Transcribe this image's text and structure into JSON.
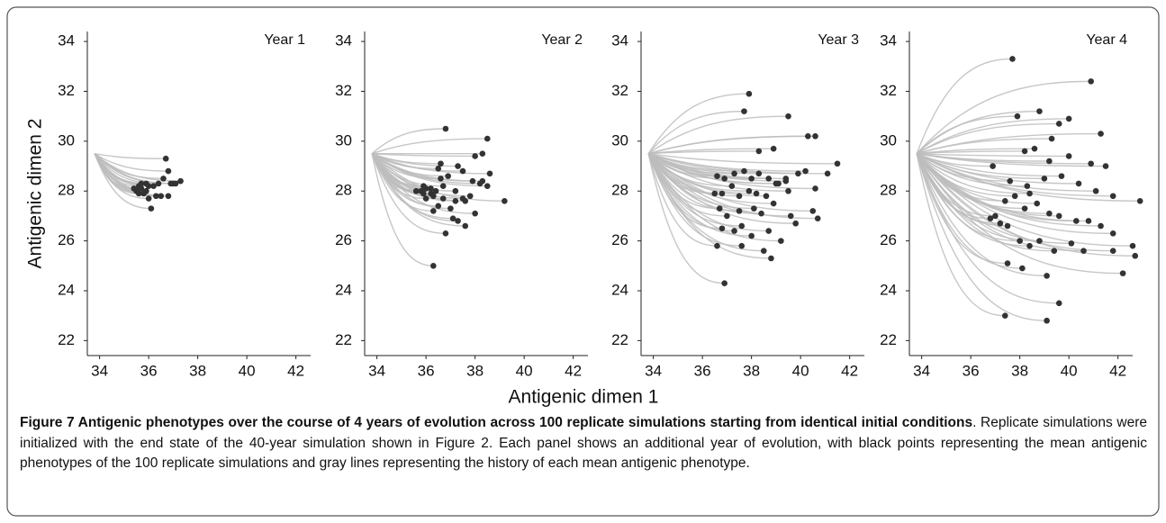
{
  "figure": {
    "xlabel": "Antigenic dimen 1",
    "ylabel": "Antigenic dimen 2",
    "trajectory_start": {
      "x": 33.8,
      "y": 29.5
    },
    "caption": {
      "bold": "Figure 7 Antigenic phenotypes over the course of 4 years of evolution across 100 replicate simulations starting from identical initial conditions",
      "text": ". Replicate simulations were initialized with the end state of the 40-year simulation shown in Figure 2. Each panel shows an additional year of evolution, with black points representing the mean antigenic phenotypes of the 100 replicate simulations and gray lines representing the history of each mean antigenic phenotype."
    }
  },
  "chart_data": [
    {
      "type": "scatter",
      "title": "Year 1",
      "point_color": "#333333",
      "line_color": "#bdbdbd",
      "xlim": [
        33.5,
        42.6
      ],
      "ylim": [
        21.4,
        34.4
      ],
      "xticks": [
        34,
        36,
        38,
        40,
        42
      ],
      "yticks": [
        22,
        24,
        26,
        28,
        30,
        32,
        34
      ],
      "x": [
        36.7,
        36.8,
        36.6,
        37.3,
        37.0,
        36.9,
        36.4,
        36.2,
        35.9,
        35.6,
        35.5,
        35.7,
        35.8,
        35.4,
        35.6,
        36.0,
        36.1,
        35.9,
        36.3,
        36.5,
        36.8,
        37.1,
        35.7,
        36.0
      ],
      "y": [
        29.3,
        28.8,
        28.5,
        28.4,
        28.3,
        28.3,
        28.3,
        28.2,
        28.3,
        28.2,
        28.0,
        28.1,
        27.9,
        28.1,
        27.9,
        27.7,
        27.3,
        28.0,
        27.8,
        27.8,
        27.8,
        28.3,
        28.3,
        28.2
      ]
    },
    {
      "type": "scatter",
      "title": "Year 2",
      "point_color": "#333333",
      "line_color": "#bdbdbd",
      "xlim": [
        33.5,
        42.6
      ],
      "ylim": [
        21.4,
        34.4
      ],
      "xticks": [
        34,
        36,
        38,
        40,
        42
      ],
      "yticks": [
        22,
        24,
        26,
        28,
        30,
        32,
        34
      ],
      "x": [
        36.8,
        38.5,
        38.3,
        38.0,
        37.3,
        38.6,
        37.9,
        38.2,
        39.2,
        36.5,
        36.6,
        36.9,
        37.5,
        37.8,
        38.5,
        36.2,
        35.8,
        35.6,
        35.9,
        36.3,
        36.0,
        36.7,
        37.2,
        37.6,
        37.0,
        36.5,
        36.3,
        36.8,
        37.1,
        37.6,
        38.0,
        36.7,
        36.4,
        36.0,
        37.2,
        37.3,
        36.3,
        37.5,
        38.3,
        35.9,
        36.2,
        36.6
      ],
      "y": [
        30.5,
        30.1,
        29.5,
        29.4,
        29.0,
        28.7,
        28.4,
        28.3,
        27.6,
        28.9,
        29.1,
        28.6,
        28.8,
        27.8,
        28.2,
        28.1,
        28.0,
        28.0,
        27.9,
        27.8,
        27.7,
        27.7,
        27.6,
        27.6,
        27.3,
        27.4,
        27.2,
        26.3,
        26.9,
        26.6,
        27.1,
        28.2,
        28.0,
        28.1,
        28.0,
        26.8,
        25.0,
        27.7,
        28.4,
        28.2,
        27.9,
        28.5
      ]
    },
    {
      "type": "scatter",
      "title": "Year 3",
      "point_color": "#333333",
      "line_color": "#bdbdbd",
      "xlim": [
        33.5,
        42.6
      ],
      "ylim": [
        21.4,
        34.4
      ],
      "xticks": [
        34,
        36,
        38,
        40,
        42
      ],
      "yticks": [
        22,
        24,
        26,
        28,
        30,
        32,
        34
      ],
      "x": [
        37.9,
        37.7,
        39.5,
        40.3,
        40.6,
        41.5,
        41.1,
        38.9,
        38.3,
        39.9,
        40.2,
        40.6,
        39.4,
        36.6,
        36.9,
        37.3,
        37.7,
        38.0,
        38.3,
        38.7,
        39.0,
        39.4,
        36.5,
        36.8,
        37.2,
        37.5,
        37.9,
        38.2,
        38.6,
        39.1,
        39.5,
        36.7,
        37.0,
        37.5,
        38.1,
        38.4,
        38.9,
        39.6,
        40.5,
        40.7,
        36.8,
        37.3,
        37.6,
        38.0,
        38.7,
        39.2,
        37.6,
        38.8,
        36.6,
        38.5,
        39.8,
        36.9
      ],
      "y": [
        31.9,
        31.2,
        31.0,
        30.2,
        30.2,
        29.1,
        28.7,
        29.7,
        29.6,
        28.7,
        28.8,
        28.1,
        28.4,
        28.6,
        28.5,
        28.7,
        28.8,
        28.5,
        28.7,
        28.5,
        28.3,
        28.5,
        27.9,
        27.9,
        28.2,
        27.8,
        28.0,
        27.9,
        27.8,
        28.3,
        28.0,
        27.3,
        27.0,
        27.2,
        27.3,
        27.1,
        27.5,
        27.0,
        27.2,
        26.9,
        26.5,
        26.4,
        26.6,
        26.2,
        26.4,
        26.0,
        25.8,
        25.3,
        25.8,
        25.6,
        26.7,
        24.3
      ]
    },
    {
      "type": "scatter",
      "title": "Year 4",
      "point_color": "#333333",
      "line_color": "#bdbdbd",
      "xlim": [
        33.5,
        42.6
      ],
      "ylim": [
        21.4,
        34.4
      ],
      "xticks": [
        34,
        36,
        38,
        40,
        42
      ],
      "yticks": [
        22,
        24,
        26,
        28,
        30,
        32,
        34
      ],
      "x": [
        37.7,
        40.9,
        37.9,
        38.8,
        39.6,
        40.0,
        39.3,
        41.3,
        38.2,
        38.6,
        39.2,
        40.0,
        40.9,
        41.5,
        42.9,
        42.6,
        41.8,
        41.1,
        40.4,
        39.7,
        39.0,
        38.3,
        37.6,
        36.9,
        37.0,
        37.4,
        37.8,
        38.2,
        38.7,
        39.2,
        39.6,
        40.3,
        40.8,
        41.3,
        41.8,
        37.2,
        37.5,
        38.0,
        38.4,
        38.8,
        39.4,
        40.1,
        40.6,
        42.2,
        37.5,
        39.1,
        39.6,
        38.1,
        42.7,
        36.8,
        41.8,
        38.4,
        37.4,
        39.1
      ],
      "y": [
        33.3,
        32.4,
        31.0,
        31.2,
        30.7,
        30.9,
        30.1,
        30.3,
        29.6,
        29.7,
        29.2,
        29.4,
        29.1,
        29.0,
        27.6,
        25.8,
        27.8,
        28.0,
        28.3,
        28.6,
        28.5,
        28.2,
        28.4,
        29.0,
        27.0,
        27.6,
        27.8,
        27.3,
        27.5,
        27.1,
        27.0,
        26.8,
        26.8,
        26.6,
        26.3,
        26.7,
        26.6,
        26.0,
        25.8,
        26.0,
        25.6,
        25.9,
        25.6,
        24.7,
        25.1,
        24.6,
        23.5,
        24.9,
        25.4,
        26.9,
        25.6,
        27.9,
        23.0,
        22.8
      ]
    }
  ]
}
